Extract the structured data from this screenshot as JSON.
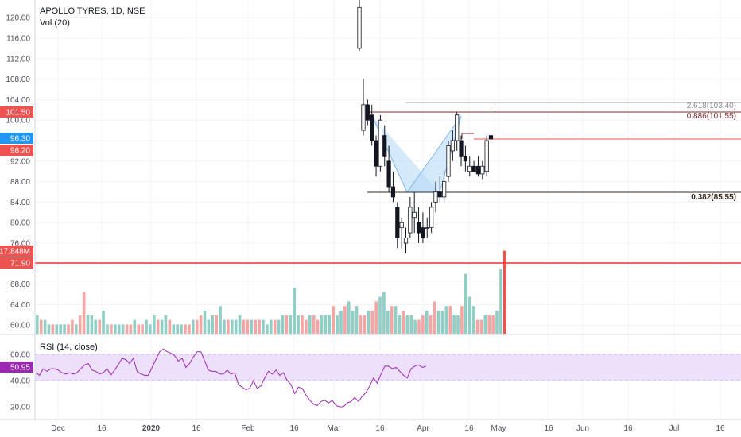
{
  "header": {
    "title": "APOLLO TYRES, 1D, NSE",
    "volume_label": "Vol (20)",
    "rsi_label": "RSI (14, close)"
  },
  "colors": {
    "up": "#26a69a",
    "down": "#ef5350",
    "vol_up": "#8fcfc6",
    "vol_down": "#f4a6a4",
    "rsi_line": "#9c27b0",
    "rsi_band": "#ede0fb",
    "hline": "#e53935",
    "pattern": "#b8daf7"
  },
  "price_axis": {
    "ticks": [
      "120.00",
      "116.00",
      "112.00",
      "108.00",
      "104.00",
      "100.00",
      "96.00",
      "92.00",
      "88.00",
      "84.00",
      "80.00",
      "76.00",
      "72.00",
      "68.00",
      "64.00",
      "60.00"
    ]
  },
  "rsi_axis": {
    "ticks": [
      "60.00",
      "40.00",
      "20.00"
    ]
  },
  "time_axis": {
    "ticks": [
      "Dec",
      "16",
      "2020",
      "16",
      "Feb",
      "16",
      "Mar",
      "16",
      "Apr",
      "16",
      "May",
      "16",
      "Jun",
      "16",
      "Jul",
      "16"
    ]
  },
  "badges": [
    {
      "text": "101.50",
      "color": "#ef5350"
    },
    {
      "text": "96.30",
      "color": "#2196f3"
    },
    {
      "text": "96.20",
      "color": "#ef5350"
    },
    {
      "text": "17.848M",
      "color": "#ef5350"
    },
    {
      "text": "71.90",
      "color": "#ef5350"
    },
    {
      "text": "50.95",
      "color": "#9c27b0"
    }
  ],
  "fib_levels": [
    {
      "label": "2.618(103.40)",
      "color": "#8e8e8e"
    },
    {
      "label": "0.886(101.55)",
      "color": "#7a2f2f"
    },
    {
      "label": "0.382(85.55)",
      "color": "#3a2a20"
    }
  ],
  "chart_data": {
    "type": "candlestick",
    "title": "APOLLO TYRES, 1D, NSE",
    "ylim": [
      58,
      122
    ],
    "horizontal_line": 71.9,
    "candles": [
      {
        "date": "2020-03-05",
        "open": 114,
        "high": 125,
        "low": 113.5,
        "close": 122
      },
      {
        "date": "2020-03-09",
        "open": 98,
        "high": 108,
        "low": 97,
        "close": 103
      },
      {
        "date": "2020-03-10",
        "open": 103,
        "high": 104,
        "low": 99,
        "close": 100
      },
      {
        "date": "2020-03-11",
        "open": 101,
        "high": 103,
        "low": 95,
        "close": 96
      },
      {
        "date": "2020-03-12",
        "open": 96,
        "high": 97,
        "low": 89,
        "close": 91
      },
      {
        "date": "2020-03-13",
        "open": 91,
        "high": 101,
        "low": 90,
        "close": 100
      },
      {
        "date": "2020-03-16",
        "open": 97,
        "high": 99,
        "low": 91,
        "close": 93
      },
      {
        "date": "2020-03-17",
        "open": 92,
        "high": 95,
        "low": 86,
        "close": 87
      },
      {
        "date": "2020-03-18",
        "open": 87,
        "high": 90,
        "low": 84,
        "close": 85
      },
      {
        "date": "2020-03-19",
        "open": 83,
        "high": 84,
        "low": 75,
        "close": 77
      },
      {
        "date": "2020-03-20",
        "open": 79,
        "high": 81,
        "low": 75,
        "close": 80
      },
      {
        "date": "2020-03-23",
        "open": 76,
        "high": 79,
        "low": 74,
        "close": 77
      },
      {
        "date": "2020-03-24",
        "open": 78,
        "high": 85,
        "low": 77,
        "close": 83
      },
      {
        "date": "2020-03-25",
        "open": 81,
        "high": 86,
        "low": 78,
        "close": 82
      },
      {
        "date": "2020-03-26",
        "open": 80,
        "high": 83,
        "low": 76,
        "close": 78
      },
      {
        "date": "2020-03-27",
        "open": 79,
        "high": 82,
        "low": 76,
        "close": 77
      },
      {
        "date": "2020-03-30",
        "open": 79,
        "high": 81,
        "low": 77,
        "close": 79
      },
      {
        "date": "2020-03-31",
        "open": 79,
        "high": 84,
        "low": 78,
        "close": 83
      },
      {
        "date": "2020-04-01",
        "open": 84,
        "high": 88,
        "low": 82,
        "close": 86
      },
      {
        "date": "2020-04-03",
        "open": 86,
        "high": 89,
        "low": 84,
        "close": 85
      },
      {
        "date": "2020-04-06",
        "open": 85,
        "high": 90,
        "low": 84,
        "close": 88
      },
      {
        "date": "2020-04-07",
        "open": 89,
        "high": 96,
        "low": 88,
        "close": 95
      },
      {
        "date": "2020-04-08",
        "open": 94,
        "high": 98,
        "low": 92,
        "close": 96
      },
      {
        "date": "2020-04-09",
        "open": 96,
        "high": 101.5,
        "low": 94,
        "close": 101
      },
      {
        "date": "2020-04-13",
        "open": 96,
        "high": 97,
        "low": 91,
        "close": 93
      },
      {
        "date": "2020-04-15",
        "open": 93,
        "high": 95,
        "low": 90,
        "close": 92
      },
      {
        "date": "2020-04-16",
        "open": 90,
        "high": 93,
        "low": 89,
        "close": 91
      },
      {
        "date": "2020-04-17",
        "open": 91,
        "high": 92,
        "low": 90,
        "close": 90
      },
      {
        "date": "2020-04-20",
        "open": 91,
        "high": 93,
        "low": 89,
        "close": 89.5
      },
      {
        "date": "2020-04-21",
        "open": 89.5,
        "high": 92,
        "low": 88.5,
        "close": 91
      },
      {
        "date": "2020-04-22",
        "open": 90,
        "high": 97,
        "low": 89,
        "close": 96
      },
      {
        "date": "2020-04-23",
        "open": 97,
        "high": 103.4,
        "low": 95.5,
        "close": 96.3
      }
    ],
    "volume": [
      4,
      3,
      3,
      2,
      2,
      2,
      2,
      2,
      2,
      3,
      2,
      4,
      9,
      4,
      4,
      3,
      3,
      5,
      2,
      2,
      2,
      2,
      2,
      2,
      2,
      3,
      2,
      2,
      3,
      2,
      4,
      3,
      3,
      4,
      3,
      2,
      2,
      2,
      2,
      2,
      3,
      3,
      4,
      5,
      3,
      4,
      4,
      6,
      3,
      3,
      3,
      3,
      4,
      3,
      3,
      3,
      3,
      3,
      3,
      2,
      3,
      3,
      3,
      4,
      4,
      4,
      10,
      4,
      4,
      3,
      4,
      4,
      3,
      4,
      4,
      4,
      6,
      4,
      5,
      6,
      7,
      5,
      6,
      4,
      4,
      5,
      5,
      7,
      8,
      9,
      5,
      6,
      6,
      4,
      5,
      4,
      4,
      3,
      3,
      4,
      5,
      4,
      7,
      5,
      5,
      6,
      6,
      4,
      4,
      6,
      13,
      8,
      6,
      3,
      3,
      4,
      4,
      4,
      5,
      14,
      18
    ],
    "rsi": [
      46,
      44,
      49,
      47,
      49,
      49,
      48,
      46,
      45,
      46,
      45,
      46,
      49,
      52,
      53,
      48,
      47,
      45,
      46,
      49,
      44,
      48,
      52,
      57,
      56,
      53,
      57,
      47,
      45,
      44,
      44,
      50,
      56,
      62,
      64,
      62,
      61,
      59,
      55,
      57,
      50,
      53,
      58,
      62,
      62,
      55,
      48,
      47,
      47,
      45,
      45,
      48,
      45,
      46,
      37,
      35,
      33,
      34,
      40,
      34,
      36,
      42,
      47,
      45,
      48,
      44,
      46,
      40,
      37,
      30,
      35,
      34,
      29,
      25,
      22,
      21,
      24,
      25,
      23,
      25,
      21,
      20,
      20,
      23,
      24,
      27,
      24,
      28,
      31,
      36,
      42,
      38,
      45,
      51,
      51,
      49,
      50,
      47,
      44,
      42,
      49,
      51,
      52,
      50,
      51
    ]
  }
}
